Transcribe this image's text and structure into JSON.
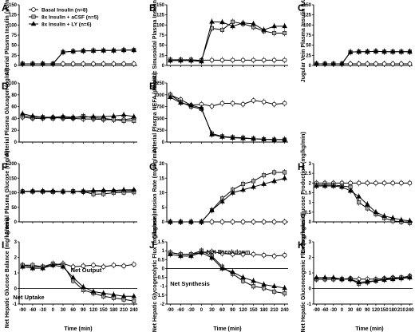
{
  "figure": {
    "x_axis_title": "Time (min)"
  },
  "legend": {
    "position": "inside top-left of panel A"
  },
  "series_styles": [
    {
      "marker": "open-circle",
      "fill": "#ffffff",
      "stroke": "#000000"
    },
    {
      "marker": "gray-square",
      "fill": "#a6a6a6",
      "stroke": "#000000"
    },
    {
      "marker": "black-triangle",
      "fill": "#000000",
      "stroke": "#000000"
    }
  ],
  "chart_data": [
    {
      "panel": "A",
      "type": "line",
      "ylabel": "Arterial Plasma Insulin (µU/ml)",
      "x": [
        -90,
        -60,
        -30,
        0,
        30,
        60,
        90,
        120,
        150,
        180,
        210,
        240
      ],
      "ylim": [
        0,
        150
      ],
      "yticks": [
        0,
        25,
        50,
        75,
        100,
        125,
        150
      ],
      "show_x_ticklabels": false,
      "series": [
        {
          "name": "Basal Insulin (n=8)",
          "values": [
            4,
            4,
            4,
            4,
            4,
            4,
            4,
            4,
            4,
            4,
            4,
            4
          ]
        },
        {
          "name": "8x Insulin + aCSF (n=5)",
          "values": [
            4,
            4,
            4,
            4,
            33,
            35,
            36,
            37,
            37,
            37,
            38,
            38
          ]
        },
        {
          "name": "8x Insulin + LY (n=6)",
          "values": [
            4,
            4,
            4,
            4,
            33,
            35,
            36,
            36,
            37,
            37,
            38,
            38
          ]
        }
      ]
    },
    {
      "panel": "B",
      "type": "line",
      "ylabel": "Hepatic Sinusoidal Plasma Insulin (µU/ml)",
      "x": [
        -90,
        -60,
        -30,
        0,
        30,
        60,
        90,
        120,
        150,
        180,
        210,
        240
      ],
      "ylim": [
        0,
        150
      ],
      "yticks": [
        0,
        25,
        50,
        75,
        100,
        125,
        150
      ],
      "show_x_ticklabels": false,
      "series": [
        {
          "name": "Basal Insulin (n=8)",
          "values": [
            13,
            13,
            13,
            13,
            13,
            13,
            13,
            13,
            13,
            13,
            13,
            13
          ]
        },
        {
          "name": "8x Insulin + aCSF (n=5)",
          "values": [
            14,
            14,
            14,
            12,
            92,
            88,
            108,
            103,
            95,
            85,
            80,
            80
          ]
        },
        {
          "name": "8x Insulin + LY (n=6)",
          "values": [
            12,
            12,
            12,
            10,
            108,
            107,
            97,
            105,
            103,
            88,
            97,
            97
          ]
        }
      ]
    },
    {
      "panel": "C",
      "type": "line",
      "ylabel": "Jugular Vein Plasma Insulin (µU/ml)",
      "x": [
        -90,
        -60,
        -30,
        0,
        30,
        60,
        90,
        120,
        150,
        180,
        210,
        240
      ],
      "ylim": [
        0,
        150
      ],
      "yticks": [
        0,
        25,
        50,
        75,
        100,
        125,
        150
      ],
      "show_x_ticklabels": false,
      "series": [
        {
          "name": "Basal Insulin (n=8)",
          "values": [
            4,
            4,
            4,
            4,
            4,
            4,
            4,
            4,
            4,
            4,
            4,
            4
          ]
        },
        {
          "name": "8x Insulin + aCSF (n=5)",
          "values": [
            4,
            4,
            4,
            4,
            33,
            34,
            34,
            35,
            34,
            34,
            34,
            34
          ]
        },
        {
          "name": "8x Insulin + LY (n=6)",
          "values": [
            4,
            4,
            4,
            4,
            33,
            34,
            34,
            35,
            34,
            34,
            34,
            34
          ]
        }
      ]
    },
    {
      "panel": "D",
      "type": "line",
      "ylabel": "Arterial Plasma Glucagon (pg/ml)",
      "x": [
        -90,
        -60,
        -30,
        0,
        30,
        60,
        90,
        120,
        150,
        180,
        210,
        240
      ],
      "ylim": [
        0,
        100
      ],
      "yticks": [
        0,
        20,
        40,
        60,
        80,
        100
      ],
      "show_x_ticklabels": false,
      "series": [
        {
          "name": "Basal Insulin (n=8)",
          "values": [
            42,
            40,
            40,
            42,
            40,
            40,
            39,
            39,
            38,
            38,
            38,
            40
          ]
        },
        {
          "name": "8x Insulin + aCSF (n=5)",
          "values": [
            45,
            42,
            42,
            40,
            42,
            41,
            44,
            41,
            40,
            38,
            36,
            36
          ]
        },
        {
          "name": "8x Insulin + LY (n=6)",
          "values": [
            48,
            44,
            42,
            42,
            43,
            42,
            42,
            43,
            43,
            44,
            46,
            43
          ]
        }
      ]
    },
    {
      "panel": "E",
      "type": "line",
      "ylabel": "Arterial Plasma NEFA (µmol/L)",
      "x": [
        -90,
        -60,
        -30,
        0,
        30,
        60,
        90,
        120,
        150,
        180,
        210,
        240
      ],
      "ylim": [
        0,
        1250
      ],
      "yticks": [
        0,
        250,
        500,
        750,
        1000,
        1250
      ],
      "show_x_ticklabels": false,
      "series": [
        {
          "name": "Basal Insulin (n=8)",
          "values": [
            1000,
            900,
            780,
            800,
            760,
            820,
            820,
            800,
            880,
            850,
            800,
            820
          ]
        },
        {
          "name": "8x Insulin + aCSF (n=5)",
          "values": [
            1000,
            850,
            750,
            700,
            180,
            120,
            100,
            90,
            70,
            60,
            50,
            50
          ]
        },
        {
          "name": "8x Insulin + LY (n=6)",
          "values": [
            950,
            830,
            780,
            720,
            160,
            110,
            90,
            80,
            70,
            60,
            55,
            55
          ]
        }
      ]
    },
    {
      "panel": "F",
      "type": "line",
      "ylabel": "Arterial Plasma Glucose (mg/dl)",
      "x": [
        -90,
        -60,
        -30,
        0,
        30,
        60,
        90,
        120,
        150,
        180,
        210,
        240
      ],
      "ylim": [
        0,
        200
      ],
      "yticks": [
        0,
        50,
        100,
        150,
        200
      ],
      "show_x_ticklabels": false,
      "series": [
        {
          "name": "Basal Insulin (n=8)",
          "values": [
            105,
            105,
            105,
            104,
            104,
            105,
            103,
            103,
            106,
            106,
            106,
            107
          ]
        },
        {
          "name": "8x Insulin + aCSF (n=5)",
          "values": [
            104,
            104,
            104,
            103,
            104,
            105,
            104,
            95,
            96,
            100,
            101,
            102
          ]
        },
        {
          "name": "8x Insulin + LY (n=6)",
          "values": [
            104,
            106,
            106,
            106,
            104,
            104,
            106,
            108,
            108,
            108,
            110,
            110
          ]
        }
      ]
    },
    {
      "panel": "G",
      "type": "line",
      "ylabel": "Glucose Infusion Rate (mg/kg/min)",
      "x": [
        -90,
        -60,
        -30,
        0,
        30,
        60,
        90,
        120,
        150,
        180,
        210,
        240
      ],
      "ylim": [
        0,
        20
      ],
      "yticks": [
        0,
        5,
        10,
        15,
        20
      ],
      "show_x_ticklabels": false,
      "series": [
        {
          "name": "Basal Insulin (n=8)",
          "values": [
            0,
            0,
            0,
            0,
            0,
            0,
            0,
            0,
            0,
            0,
            0,
            0
          ]
        },
        {
          "name": "8x Insulin + aCSF (n=5)",
          "values": [
            0,
            0,
            0,
            0,
            4,
            8,
            11,
            13,
            14,
            16,
            17,
            17
          ]
        },
        {
          "name": "8x Insulin + LY (n=6)",
          "values": [
            0,
            0,
            0,
            0,
            4,
            7,
            10,
            11,
            12,
            13,
            14,
            15
          ]
        }
      ]
    },
    {
      "panel": "H",
      "type": "line",
      "ylabel": "Endogenous Glucose Production (mg/kg/min)",
      "x": [
        -90,
        -60,
        -30,
        0,
        30,
        60,
        90,
        120,
        150,
        180,
        210,
        240
      ],
      "ylim": [
        0,
        3
      ],
      "yticks": [
        0,
        0.5,
        1,
        1.5,
        2,
        2.5,
        3
      ],
      "show_x_ticklabels": false,
      "series": [
        {
          "name": "Basal Insulin (n=8)",
          "values": [
            2,
            2,
            2,
            2,
            2,
            2,
            2,
            2,
            2,
            2,
            2,
            2
          ]
        },
        {
          "name": "8x Insulin + aCSF (n=5)",
          "values": [
            1.9,
            1.9,
            1.9,
            1.85,
            1.8,
            1.0,
            0.7,
            0.4,
            0.2,
            0.05,
            0,
            -0.05
          ]
        },
        {
          "name": "8x Insulin + LY (n=6)",
          "values": [
            1.85,
            1.85,
            1.85,
            1.8,
            1.6,
            1.3,
            0.9,
            0.5,
            0.3,
            0.2,
            0.1,
            0.05
          ]
        }
      ]
    },
    {
      "panel": "I",
      "type": "line",
      "ylabel": "Net Hepatic Glucose Balance (mg/kg/min)",
      "x": [
        -90,
        -60,
        -30,
        0,
        30,
        60,
        90,
        120,
        150,
        180,
        210,
        240
      ],
      "ylim": [
        -1,
        3
      ],
      "yticks": [
        -1,
        0,
        1,
        2,
        3
      ],
      "annotations": [
        "Net Output",
        "Net Uptake"
      ],
      "show_x_ticklabels": true,
      "series": [
        {
          "name": "Basal Insulin (n=8)",
          "values": [
            1.5,
            1.4,
            1.4,
            1.5,
            1.6,
            1.4,
            1.45,
            1.5,
            1.4,
            1.5,
            1.45,
            1.55
          ]
        },
        {
          "name": "8x Insulin + aCSF (n=5)",
          "values": [
            1.5,
            1.5,
            1.4,
            1.6,
            1.5,
            0.5,
            -0.1,
            -0.3,
            -0.5,
            -0.6,
            -0.7,
            -0.8
          ]
        },
        {
          "name": "8x Insulin + LY (n=6)",
          "values": [
            1.4,
            1.3,
            1.3,
            1.5,
            1.4,
            0.7,
            0.1,
            -0.2,
            -0.3,
            -0.4,
            -0.5,
            -0.5
          ]
        }
      ]
    },
    {
      "panel": "J",
      "type": "line",
      "ylabel": "Net Hepatic Glycogenolytic Flux (mg/kg/min)",
      "x": [
        -90,
        -60,
        -30,
        0,
        30,
        60,
        90,
        120,
        150,
        180,
        210,
        240
      ],
      "ylim": [
        -2,
        1.5
      ],
      "yticks": [
        -2,
        -1.5,
        -1,
        -0.5,
        0,
        0.5,
        1,
        1.5
      ],
      "annotations": [
        "Net Breakdown",
        "Net Synthesis"
      ],
      "show_x_ticklabels": true,
      "series": [
        {
          "name": "Basal Insulin (n=8)",
          "values": [
            0.9,
            0.8,
            0.8,
            0.9,
            0.95,
            0.85,
            0.8,
            0.8,
            0.8,
            0.75,
            0.7,
            0.75
          ]
        },
        {
          "name": "8x Insulin + aCSF (n=5)",
          "values": [
            0.9,
            0.8,
            0.8,
            1.0,
            0.7,
            0.1,
            -0.3,
            -0.7,
            -1.0,
            -1.1,
            -1.3,
            -1.4
          ]
        },
        {
          "name": "8x Insulin + LY (n=6)",
          "values": [
            0.8,
            0.7,
            0.7,
            0.9,
            0.6,
            0.0,
            -0.2,
            -0.5,
            -0.7,
            -0.9,
            -1.0,
            -1.1
          ]
        }
      ]
    },
    {
      "panel": "K",
      "type": "line",
      "ylabel": "Net Hepatic Gluconeogenic Flux (mg/kg/min)",
      "x": [
        -90,
        -60,
        -30,
        0,
        30,
        60,
        90,
        120,
        150,
        180,
        210,
        240
      ],
      "ylim": [
        -1,
        3
      ],
      "yticks": [
        -1,
        0,
        1,
        2,
        3
      ],
      "show_x_ticklabels": true,
      "series": [
        {
          "name": "Basal Insulin (n=8)",
          "values": [
            0.6,
            0.6,
            0.6,
            0.6,
            0.65,
            0.6,
            0.6,
            0.6,
            0.65,
            0.7,
            0.7,
            0.8
          ]
        },
        {
          "name": "8x Insulin + aCSF (n=5)",
          "values": [
            0.6,
            0.6,
            0.6,
            0.6,
            0.6,
            0.3,
            0.4,
            0.5,
            0.6,
            0.65,
            0.7,
            0.75
          ]
        },
        {
          "name": "8x Insulin + LY (n=6)",
          "values": [
            0.7,
            0.7,
            0.7,
            0.6,
            0.6,
            0.4,
            0.45,
            0.5,
            0.55,
            0.6,
            0.65,
            0.7
          ]
        }
      ]
    }
  ]
}
